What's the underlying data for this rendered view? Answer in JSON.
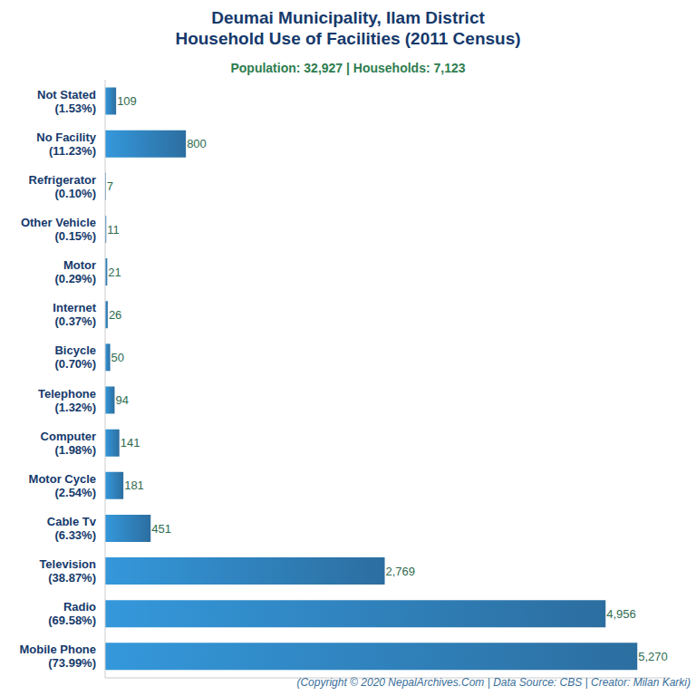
{
  "chart_data": {
    "type": "bar",
    "orientation": "horizontal",
    "title": "Deumai Municipality, Ilam District\nHousehold Use of Facilities (2011 Census)",
    "subtitle": "Population: 32,927 | Households: 7,123",
    "footer": "(Copyright © 2020 NepalArchives.Com | Data Source: CBS | Creator: Milan Karki)",
    "categories": [
      "Not Stated (1.53%)",
      "No Facility (11.23%)",
      "Refrigerator (0.10%)",
      "Other Vehicle (0.15%)",
      "Motor (0.29%)",
      "Internet (0.37%)",
      "Bicycle (0.70%)",
      "Telephone (1.32%)",
      "Computer (1.98%)",
      "Motor Cycle (2.54%)",
      "Cable Tv (6.33%)",
      "Television (38.87%)",
      "Radio (69.58%)",
      "Mobile Phone (73.99%)"
    ],
    "values": [
      109,
      800,
      7,
      11,
      21,
      26,
      50,
      94,
      141,
      181,
      451,
      2769,
      4956,
      5270
    ],
    "value_labels": [
      "109",
      "800",
      "7",
      "11",
      "21",
      "26",
      "50",
      "94",
      "141",
      "181",
      "451",
      "2,769",
      "4,956",
      "5,270"
    ],
    "data_labels": true,
    "color": "#3498db",
    "xlim": [
      0,
      5600
    ],
    "xticks": [],
    "grid": false,
    "tick_labels": "y"
  }
}
